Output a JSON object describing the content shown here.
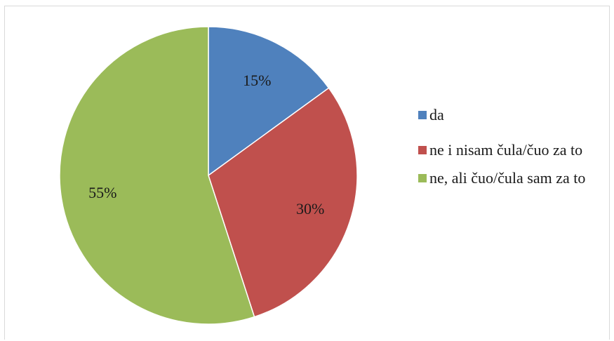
{
  "chart_data": {
    "type": "pie",
    "categories": [
      "da",
      "ne i nisam čula/čuo za to",
      "ne, ali čuo/čula sam za to"
    ],
    "values": [
      15,
      30,
      55
    ],
    "value_labels": [
      "15%",
      "30%",
      "55%"
    ],
    "colors": [
      "#4F81BD",
      "#C0504D",
      "#9BBB59"
    ],
    "start_angle": "12 o'clock",
    "direction": "clockwise",
    "legend_position": "right"
  },
  "legend": {
    "items": [
      {
        "label": "da",
        "color": "#4F81BD"
      },
      {
        "label": "ne i nisam čula/čuo za to",
        "color": "#C0504D"
      },
      {
        "label": "ne, ali čuo/čula sam za to",
        "color": "#9BBB59"
      }
    ]
  }
}
